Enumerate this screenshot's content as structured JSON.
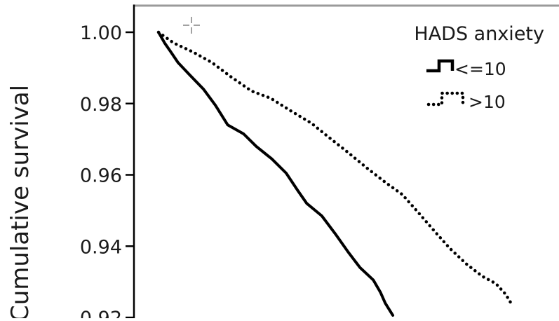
{
  "chart_data": {
    "type": "line",
    "ylabel": "Cumulative survival",
    "ylim": [
      0.915,
      1.004
    ],
    "xlim": [
      0,
      100
    ],
    "yticks": [
      {
        "value": 1.0,
        "label": "1.00"
      },
      {
        "value": 0.98,
        "label": "0.98"
      },
      {
        "value": 0.96,
        "label": "0.96"
      },
      {
        "value": 0.94,
        "label": "0.94"
      },
      {
        "value": 0.92,
        "label": "0.92"
      }
    ],
    "legend": {
      "title": "HADS anxiety",
      "placement": "top-right"
    },
    "series": [
      {
        "name": "<=10",
        "style": "solid",
        "color": "#000000",
        "points": [
          [
            0,
            1.0
          ],
          [
            1.7,
            0.997
          ],
          [
            3.4,
            0.9945
          ],
          [
            5.4,
            0.9915
          ],
          [
            8.7,
            0.988
          ],
          [
            12.5,
            0.984
          ],
          [
            15.8,
            0.9795
          ],
          [
            19.2,
            0.974
          ],
          [
            23.6,
            0.9715
          ],
          [
            27.1,
            0.968
          ],
          [
            31.4,
            0.9645
          ],
          [
            35.4,
            0.9605
          ],
          [
            38.7,
            0.9555
          ],
          [
            41.1,
            0.952
          ],
          [
            45.3,
            0.9485
          ],
          [
            49.0,
            0.9435
          ],
          [
            52.5,
            0.9385
          ],
          [
            55.9,
            0.934
          ],
          [
            59.6,
            0.9305
          ],
          [
            61.6,
            0.927
          ],
          [
            62.9,
            0.924
          ],
          [
            65.0,
            0.9206
          ]
        ]
      },
      {
        "name": ">10",
        "style": "dotted",
        "color": "#000000",
        "points": [
          [
            0,
            1.0
          ],
          [
            4.2,
            0.997
          ],
          [
            9.5,
            0.9945
          ],
          [
            14.8,
            0.9915
          ],
          [
            20.1,
            0.9875
          ],
          [
            25.8,
            0.9835
          ],
          [
            31.1,
            0.9815
          ],
          [
            36.6,
            0.978
          ],
          [
            42.4,
            0.9745
          ],
          [
            47.3,
            0.9705
          ],
          [
            52.3,
            0.9665
          ],
          [
            57.7,
            0.962
          ],
          [
            62.8,
            0.958
          ],
          [
            67.6,
            0.9545
          ],
          [
            72.0,
            0.9495
          ],
          [
            76.3,
            0.9445
          ],
          [
            80.7,
            0.9395
          ],
          [
            85.4,
            0.935
          ],
          [
            89.9,
            0.9315
          ],
          [
            93.6,
            0.9295
          ],
          [
            96.3,
            0.9265
          ],
          [
            98.1,
            0.9235
          ]
        ]
      }
    ],
    "grid": false
  },
  "colors": {
    "frame": "#9a9a9a",
    "axis": "#000000",
    "text": "#1a1a1a"
  }
}
